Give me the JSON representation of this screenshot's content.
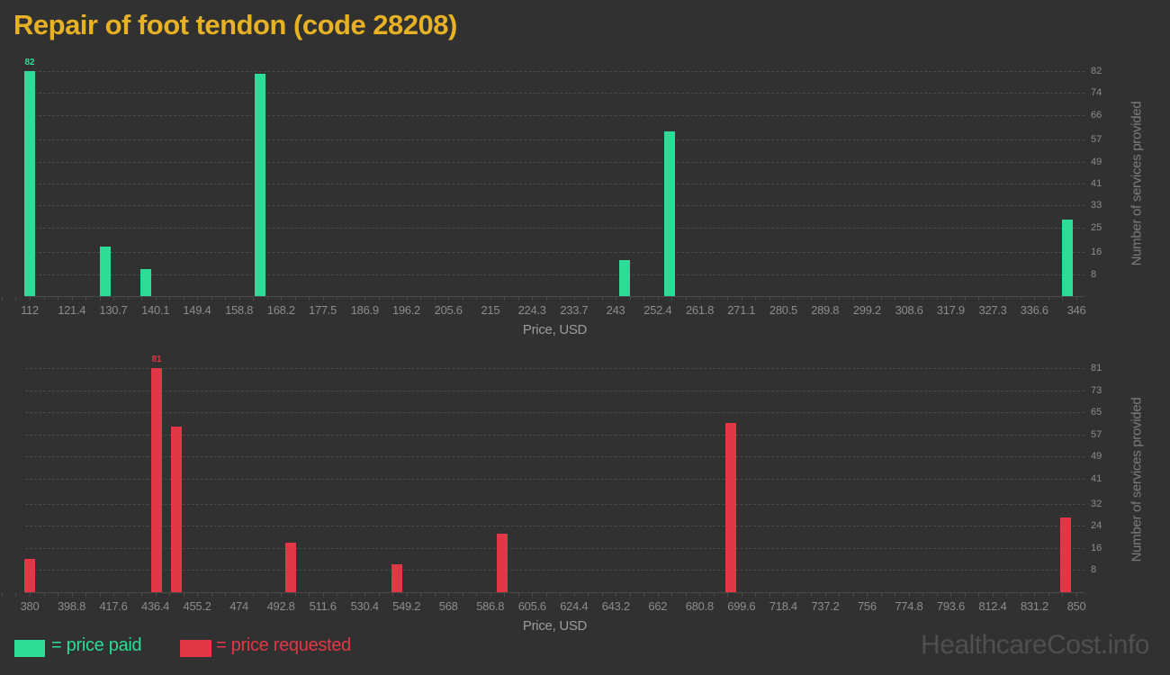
{
  "page": {
    "title": "Repair of foot tendon (code 28208)",
    "watermark": "HealthcareCost.info"
  },
  "colors": {
    "background": "#313131",
    "title": "#E7B125",
    "paid": "#2DDC96",
    "requested": "#E13746",
    "gridline": "#4A4A4A",
    "tick_label": "#8C8C8C",
    "x_axis_title": "#9C9C9C",
    "y_axis_title": "#7C7C7C",
    "watermark": "#4F4F4F"
  },
  "legend": {
    "paid_label": "= price paid",
    "requested_label": "= price requested"
  },
  "chart_data": [
    {
      "type": "bar",
      "name": "price paid",
      "color": "#2DDC96",
      "xlabel": "Price, USD",
      "ylabel": "Number of services provided",
      "x_range": [
        112,
        346
      ],
      "y_range": [
        0,
        82
      ],
      "grid": "horizontal-dashed",
      "legend_position": "bottom-left",
      "y_axis_side": "right",
      "x_ticks": [
        112,
        121.4,
        130.7,
        140.1,
        149.4,
        158.8,
        168.2,
        177.5,
        186.9,
        196.2,
        205.6,
        215,
        224.3,
        233.7,
        243,
        252.4,
        261.8,
        271.1,
        280.5,
        289.8,
        299.2,
        308.6,
        317.9,
        327.3,
        336.6,
        346
      ],
      "y_ticks": [
        8,
        16,
        25,
        33,
        41,
        49,
        57,
        66,
        74,
        82
      ],
      "bars": [
        {
          "price": 112,
          "count": 82,
          "label": "82"
        },
        {
          "price": 129,
          "count": 18
        },
        {
          "price": 138,
          "count": 10
        },
        {
          "price": 163.5,
          "count": 81
        },
        {
          "price": 245,
          "count": 13
        },
        {
          "price": 255,
          "count": 60
        },
        {
          "price": 344,
          "count": 28
        }
      ]
    },
    {
      "type": "bar",
      "name": "price requested",
      "color": "#E13746",
      "xlabel": "Price, USD",
      "ylabel": "Number of services provided",
      "x_range": [
        380,
        850
      ],
      "y_range": [
        0,
        81
      ],
      "grid": "horizontal-dashed",
      "legend_position": "bottom-left",
      "y_axis_side": "right",
      "x_ticks": [
        380,
        398.8,
        417.6,
        436.4,
        455.2,
        474,
        492.8,
        511.6,
        530.4,
        549.2,
        568,
        586.8,
        605.6,
        624.4,
        643.2,
        662,
        680.8,
        699.6,
        718.4,
        737.2,
        756,
        774.8,
        793.6,
        812.4,
        831.2,
        850
      ],
      "y_ticks": [
        8,
        16,
        24,
        32,
        41,
        49,
        57,
        65,
        73,
        81
      ],
      "bars": [
        {
          "price": 380,
          "count": 12
        },
        {
          "price": 437,
          "count": 81,
          "label": "81"
        },
        {
          "price": 446,
          "count": 60
        },
        {
          "price": 497,
          "count": 18
        },
        {
          "price": 545,
          "count": 10
        },
        {
          "price": 592,
          "count": 21
        },
        {
          "price": 695,
          "count": 61
        },
        {
          "price": 845,
          "count": 27
        }
      ]
    }
  ]
}
